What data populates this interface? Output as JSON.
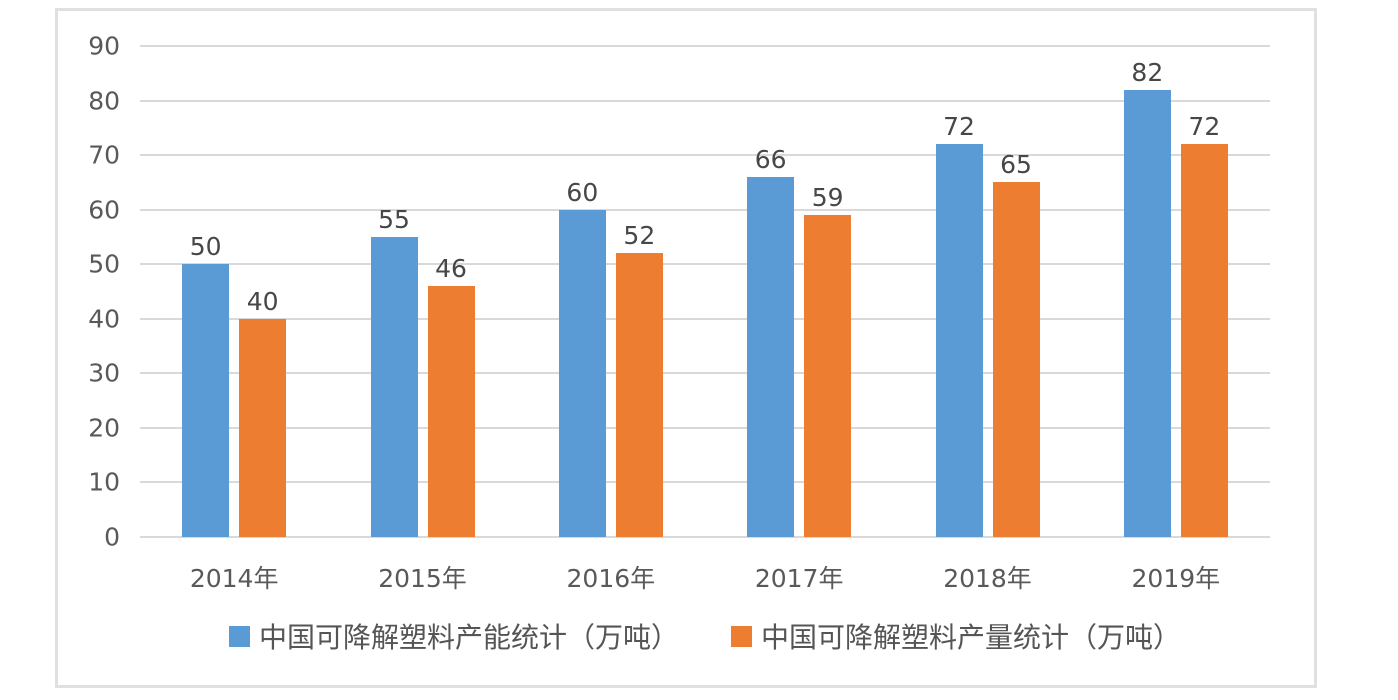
{
  "chart_data": {
    "type": "bar",
    "categories": [
      "2014年",
      "2015年",
      "2016年",
      "2017年",
      "2018年",
      "2019年"
    ],
    "series": [
      {
        "name": "中国可降解塑料产能统计（万吨）",
        "color": "#5b9bd5",
        "values": [
          50,
          55,
          60,
          66,
          72,
          82
        ]
      },
      {
        "name": "中国可降解塑料产量统计（万吨）",
        "color": "#ed7d31",
        "values": [
          40,
          46,
          52,
          59,
          65,
          72
        ]
      }
    ],
    "yticks": [
      0,
      10,
      20,
      30,
      40,
      50,
      60,
      70,
      80,
      90
    ],
    "ylim": [
      0,
      90
    ],
    "ytick_step": 10,
    "grid": true,
    "legend_position": "bottom",
    "data_labels": true
  },
  "colors": {
    "series_capacity": "#5b9bd5",
    "series_output": "#ed7d31",
    "gridline": "#d9d9d9",
    "axis_text": "#595959",
    "data_label_text": "#474747",
    "frame_border": "#e0e0e0",
    "background": "#ffffff"
  }
}
